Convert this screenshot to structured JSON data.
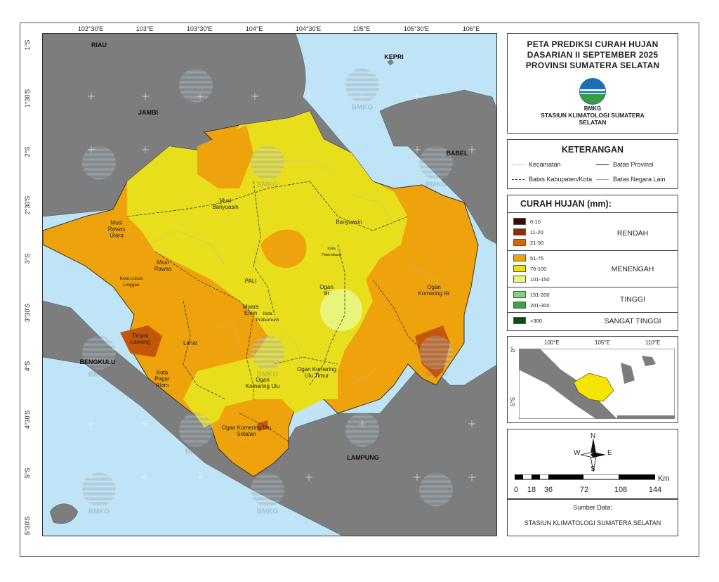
{
  "title": {
    "line1": "PETA PREDIKSI CURAH HUJAN",
    "line2": "DASARIAN II SEPTEMBER 2025",
    "line3": "PROVINSI SUMATERA SELATAN",
    "logo_text": "BMKG",
    "station_line1": "STASIUN KLIMATOLOGI SUMATERA",
    "station_line2": "SELATAN"
  },
  "keterangan": {
    "title": "KETERANGAN",
    "items": [
      "Kecamatan",
      "Batas Provinsi",
      "Batas Kabupaten/Kota",
      "Batas Negara Lain"
    ]
  },
  "rainfall_legend": {
    "title": "CURAH HUJAN (mm):",
    "classes": [
      {
        "range": "0-10",
        "color": "#3d0a03"
      },
      {
        "range": "11-20",
        "color": "#8b2d06"
      },
      {
        "range": "21-50",
        "color": "#d8670c"
      },
      {
        "range": "51-75",
        "color": "#eea20c"
      },
      {
        "range": "76-100",
        "color": "#e9de1c"
      },
      {
        "range": "101-150",
        "color": "#e9f57a"
      },
      {
        "range": "151-200",
        "color": "#82d282"
      },
      {
        "range": "201-300",
        "color": "#3aa247"
      },
      {
        "range": ">300",
        "color": "#0f4d12"
      }
    ],
    "categories": [
      "RENDAH",
      "MENENGAH",
      "TINGGI",
      "SANGAT TINGGI"
    ]
  },
  "axes": {
    "longitude_ticks": [
      "102°30'E",
      "103°E",
      "103°30'E",
      "104°E",
      "104°30'E",
      "105°E",
      "105°30'E",
      "106°E"
    ],
    "latitude_ticks": [
      "1°S",
      "1°30'S",
      "2°S",
      "2°30'S",
      "3°S",
      "3°30'S",
      "4°S",
      "4°30'S",
      "5°S",
      "5°30'S"
    ]
  },
  "neighbors": [
    "RIAU",
    "KEPRI",
    "JAMBI",
    "BABEL",
    "BENGKULU",
    "LAMPUNG"
  ],
  "regions": [
    "Musi Banyuasin",
    "Musi Rawas Utara",
    "Musi Rawas",
    "Kota Lubuk Linggau",
    "Banyuasin",
    "Kota Palembang",
    "PALI",
    "Ogan Ilir",
    "Ogan Komering Ilir",
    "Kota Prabumulih",
    "Muara Enim",
    "Empat Lawang",
    "Lahat",
    "Kota Pagar Alam",
    "Ogan Komering Ulu",
    "Ogan Komering Ulu Timur",
    "Ogan Komering Ulu Selatan"
  ],
  "watermark": "BMKG",
  "inset": {
    "lon_ticks": [
      "100°E",
      "105°E",
      "110°E"
    ],
    "lat_ticks": [
      "0°",
      "5°S"
    ]
  },
  "north_arrow": {
    "n": "N",
    "s": "S",
    "e": "E",
    "w": "W"
  },
  "scale": {
    "unit": "Km",
    "labels": [
      "0",
      "18",
      "36",
      "72",
      "108",
      "144"
    ]
  },
  "source": {
    "label": "Sumber Data:",
    "value": "STASIUN KLIMATOLOGI SUMATERA SELATAN"
  }
}
